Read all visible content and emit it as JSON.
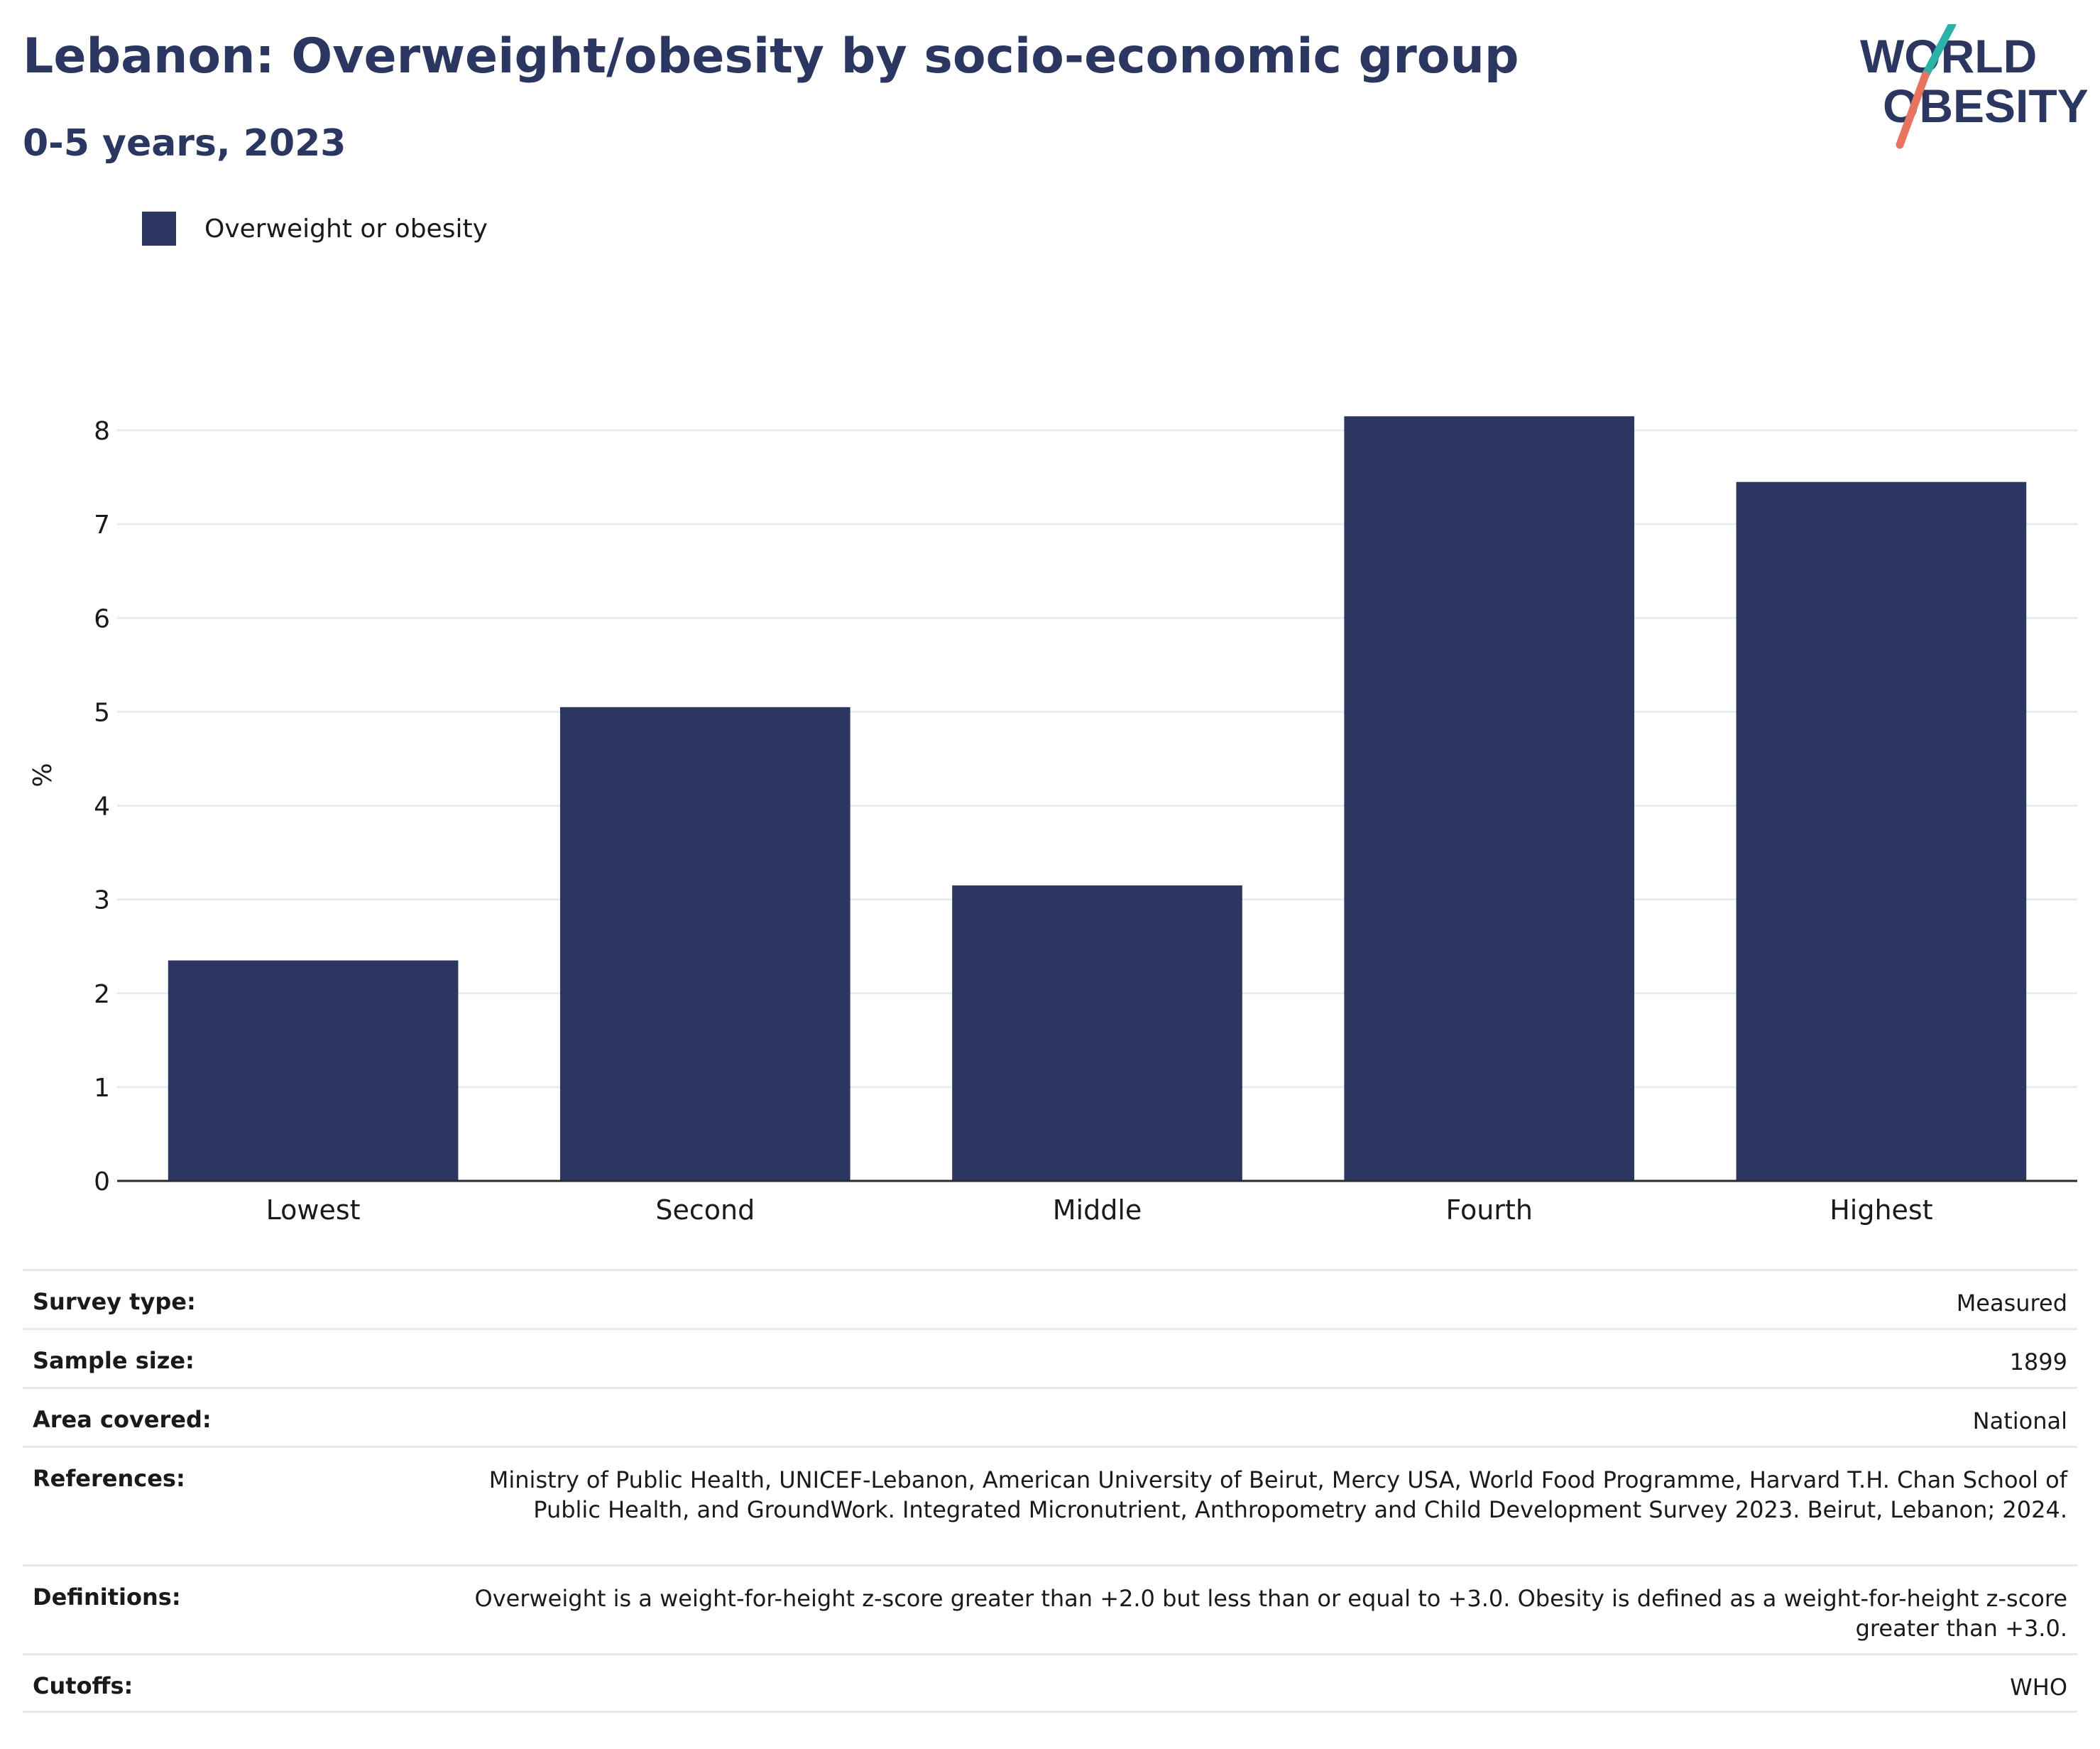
{
  "header": {
    "title": "Lebanon: Overweight/obesity by socio-economic group",
    "subtitle": "0-5 years, 2023"
  },
  "logo": {
    "line1": "WORLD",
    "line2": "OBESITY",
    "accent_teal": "#2bb3a8",
    "accent_coral": "#e8735f"
  },
  "legend": {
    "label": "Overweight or obesity",
    "color": "#2b3661"
  },
  "chart_data": {
    "type": "bar",
    "categories": [
      "Lowest",
      "Second",
      "Middle",
      "Fourth",
      "Highest"
    ],
    "series": [
      {
        "name": "Overweight or obesity",
        "values": [
          2.35,
          5.05,
          3.15,
          8.15,
          7.45
        ],
        "color": "#2b3661"
      }
    ],
    "ylabel": "%",
    "xlabel": "",
    "ylim": [
      0,
      8.5
    ],
    "yticks": [
      "0",
      "1",
      "2",
      "3",
      "4",
      "5",
      "6",
      "7",
      "8"
    ],
    "grid": true,
    "legend_position": "top-left"
  },
  "info": {
    "rows": [
      {
        "label": "Survey type:",
        "value": "Measured"
      },
      {
        "label": "Sample size:",
        "value": "1899"
      },
      {
        "label": "Area covered:",
        "value": "National"
      },
      {
        "label": "References:",
        "value": "Ministry of Public Health, UNICEF-Lebanon, American University of Beirut, Mercy USA, World Food Programme, Harvard T.H. Chan School of Public Health, and GroundWork. Integrated Micronutrient, Anthropometry and Child Development Survey 2023. Beirut, Lebanon; 2024."
      },
      {
        "label": "Definitions:",
        "value": "Overweight is a weight-for-height z-score greater than +2.0 but less than or equal to +3.0. Obesity is defined as a weight-for-height z-score greater than +3.0."
      },
      {
        "label": "Cutoffs:",
        "value": "WHO"
      }
    ]
  }
}
